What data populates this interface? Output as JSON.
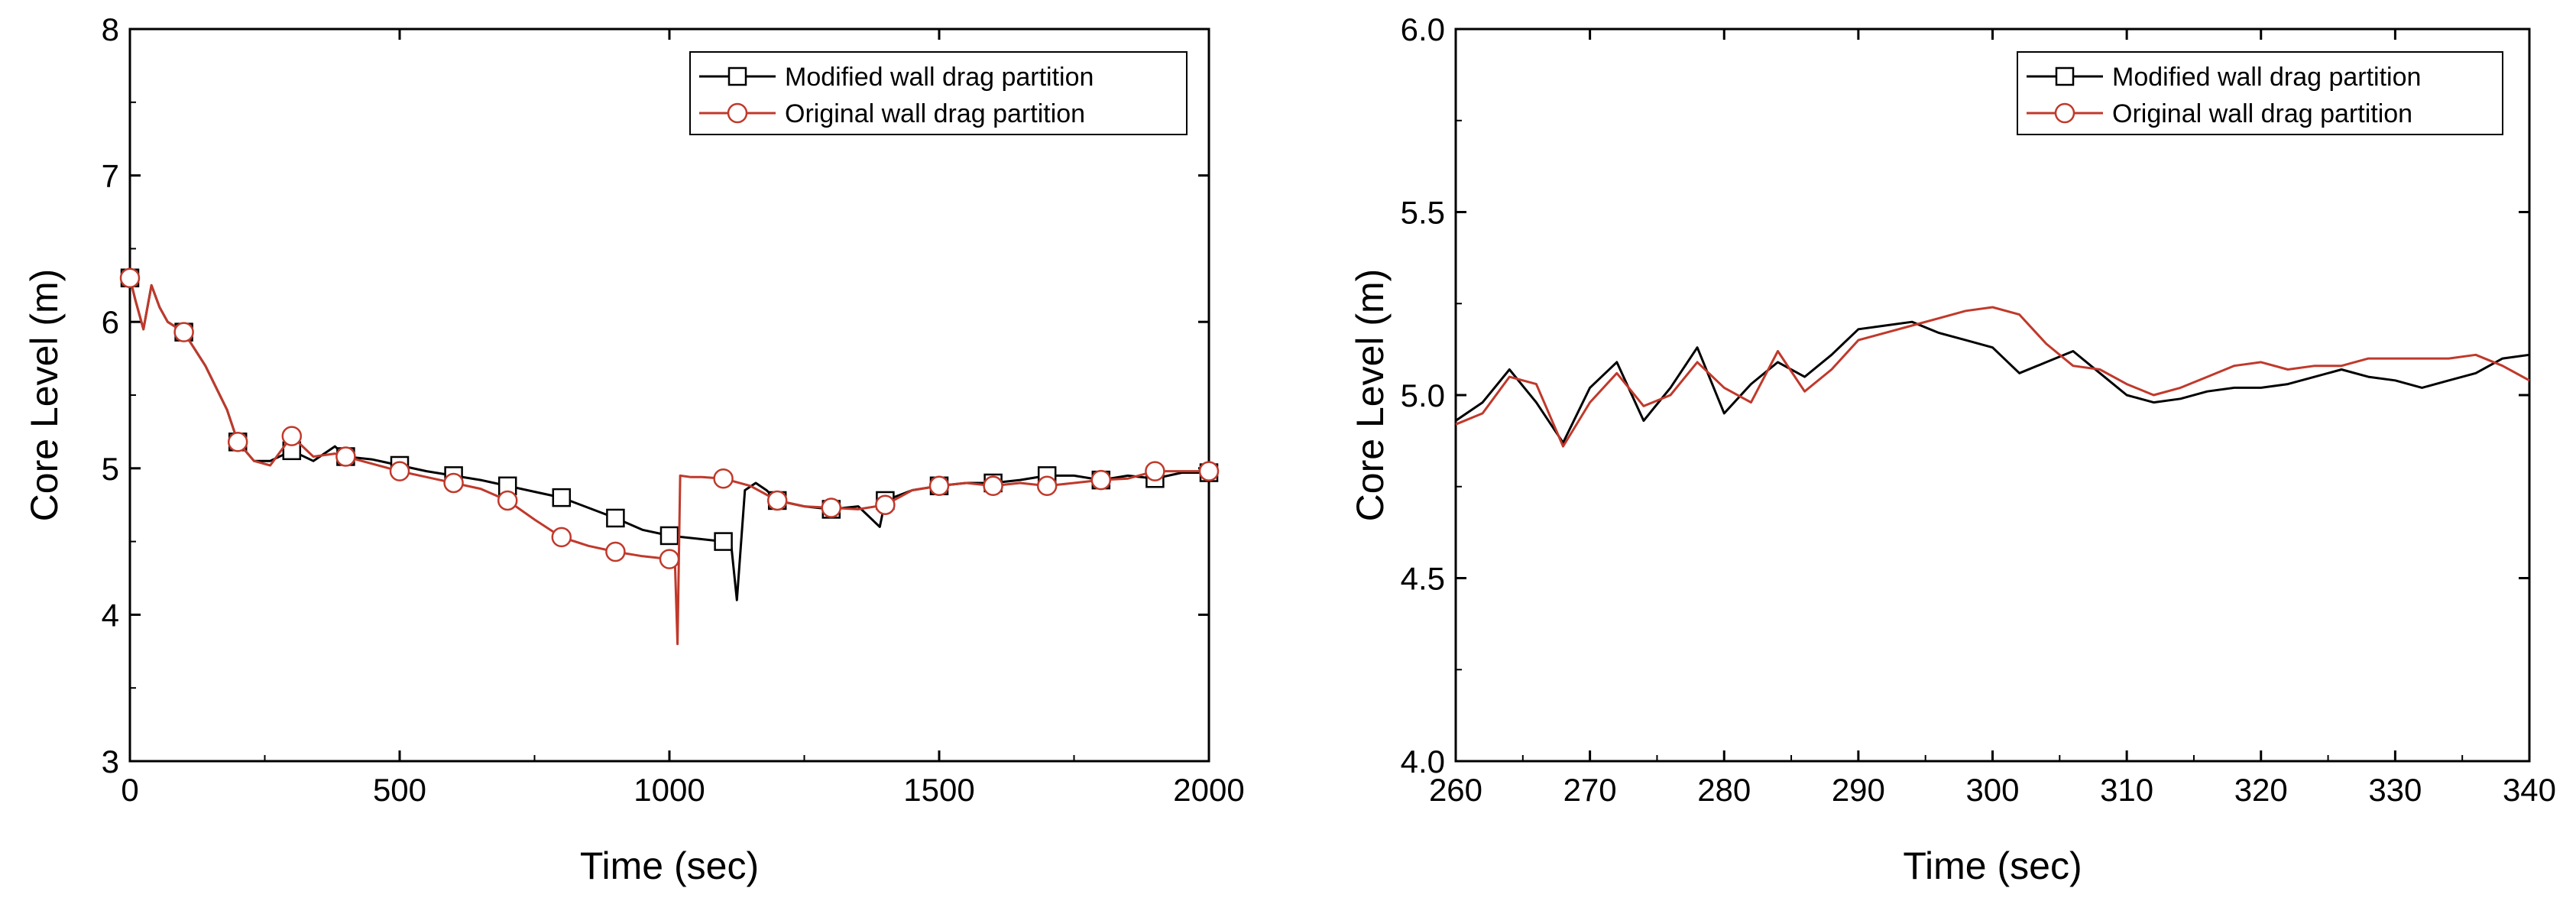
{
  "chart_data": [
    {
      "type": "line",
      "xlabel": "Time (sec)",
      "ylabel": "Core Level (m)",
      "xlim": [
        0,
        2000
      ],
      "ylim": [
        3,
        8
      ],
      "xticks": [
        "0",
        "500",
        "1000",
        "1500",
        "2000"
      ],
      "yticks": [
        "3",
        "4",
        "5",
        "6",
        "7",
        "8"
      ],
      "legend_position": "top-right",
      "series": [
        {
          "name": "Modified wall drag partition",
          "color": "#000000",
          "marker": "square",
          "x": [
            0,
            10,
            25,
            40,
            55,
            70,
            100,
            140,
            180,
            200,
            230,
            260,
            300,
            340,
            380,
            400,
            450,
            500,
            550,
            600,
            650,
            700,
            750,
            800,
            850,
            900,
            950,
            1000,
            1050,
            1100,
            1115,
            1125,
            1140,
            1160,
            1180,
            1200,
            1250,
            1300,
            1350,
            1390,
            1400,
            1450,
            1500,
            1550,
            1600,
            1650,
            1700,
            1750,
            1800,
            1850,
            1900,
            1950,
            2000
          ],
          "values": [
            6.3,
            6.15,
            5.95,
            6.25,
            6.1,
            6.0,
            5.93,
            5.7,
            5.4,
            5.18,
            5.05,
            5.05,
            5.12,
            5.05,
            5.15,
            5.08,
            5.06,
            5.02,
            4.98,
            4.95,
            4.92,
            4.88,
            4.84,
            4.8,
            4.73,
            4.66,
            4.58,
            4.54,
            4.52,
            4.5,
            4.46,
            4.1,
            4.85,
            4.9,
            4.85,
            4.78,
            4.74,
            4.72,
            4.74,
            4.6,
            4.78,
            4.85,
            4.88,
            4.9,
            4.9,
            4.92,
            4.95,
            4.95,
            4.92,
            4.95,
            4.93,
            4.97,
            4.97
          ],
          "marker_x": [
            0,
            100,
            200,
            300,
            400,
            500,
            600,
            700,
            800,
            900,
            1000,
            1100,
            1200,
            1300,
            1400,
            1500,
            1600,
            1700,
            1800,
            1900,
            2000
          ]
        },
        {
          "name": "Original wall drag partition",
          "color": "#c0392b",
          "marker": "circle",
          "x": [
            0,
            10,
            25,
            40,
            55,
            70,
            100,
            140,
            180,
            200,
            230,
            260,
            300,
            340,
            380,
            400,
            450,
            500,
            550,
            600,
            650,
            700,
            750,
            800,
            850,
            900,
            950,
            1000,
            1010,
            1015,
            1020,
            1040,
            1060,
            1100,
            1150,
            1200,
            1250,
            1300,
            1350,
            1400,
            1450,
            1500,
            1550,
            1600,
            1650,
            1700,
            1750,
            1800,
            1850,
            1900,
            1950,
            2000
          ],
          "values": [
            6.3,
            6.15,
            5.95,
            6.25,
            6.1,
            6.0,
            5.93,
            5.7,
            5.4,
            5.18,
            5.05,
            5.02,
            5.22,
            5.08,
            5.1,
            5.08,
            5.03,
            4.98,
            4.94,
            4.9,
            4.86,
            4.78,
            4.65,
            4.53,
            4.47,
            4.43,
            4.4,
            4.38,
            4.38,
            3.8,
            4.95,
            4.94,
            4.94,
            4.93,
            4.88,
            4.78,
            4.74,
            4.73,
            4.72,
            4.75,
            4.85,
            4.88,
            4.9,
            4.88,
            4.9,
            4.88,
            4.9,
            4.92,
            4.93,
            4.98,
            4.98,
            4.98
          ],
          "marker_x": [
            0,
            100,
            200,
            300,
            400,
            500,
            600,
            700,
            800,
            900,
            1000,
            1100,
            1200,
            1300,
            1400,
            1500,
            1600,
            1700,
            1800,
            1900,
            2000
          ]
        }
      ]
    },
    {
      "type": "line",
      "xlabel": "Time (sec)",
      "ylabel": "Core Level (m)",
      "xlim": [
        260,
        340
      ],
      "ylim": [
        4.0,
        6.0
      ],
      "xticks": [
        "260",
        "270",
        "280",
        "290",
        "300",
        "310",
        "320",
        "330",
        "340"
      ],
      "yticks": [
        "4.0",
        "4.5",
        "5.0",
        "5.5",
        "6.0"
      ],
      "legend_position": "top-right",
      "series": [
        {
          "name": "Modified wall drag partition",
          "color": "#000000",
          "marker": "square",
          "x": [
            260,
            262,
            264,
            266,
            268,
            270,
            272,
            274,
            276,
            278,
            280,
            282,
            284,
            286,
            288,
            290,
            292,
            294,
            296,
            298,
            300,
            302,
            304,
            306,
            308,
            310,
            312,
            314,
            316,
            318,
            320,
            322,
            324,
            326,
            328,
            330,
            332,
            334,
            336,
            338,
            340
          ],
          "values": [
            4.93,
            4.98,
            5.07,
            4.98,
            4.87,
            5.02,
            5.09,
            4.93,
            5.02,
            5.13,
            4.95,
            5.03,
            5.09,
            5.05,
            5.11,
            5.18,
            5.19,
            5.2,
            5.17,
            5.15,
            5.13,
            5.06,
            5.09,
            5.12,
            5.06,
            5.0,
            4.98,
            4.99,
            5.01,
            5.02,
            5.02,
            5.03,
            5.05,
            5.07,
            5.05,
            5.04,
            5.02,
            5.04,
            5.06,
            5.1,
            5.11
          ],
          "marker_x": []
        },
        {
          "name": "Original wall drag partition",
          "color": "#c0392b",
          "marker": "circle",
          "x": [
            260,
            262,
            264,
            266,
            268,
            270,
            272,
            274,
            276,
            278,
            280,
            282,
            284,
            286,
            288,
            290,
            292,
            294,
            296,
            298,
            300,
            302,
            304,
            306,
            308,
            310,
            312,
            314,
            316,
            318,
            320,
            322,
            324,
            326,
            328,
            330,
            332,
            334,
            336,
            338,
            340
          ],
          "values": [
            4.92,
            4.95,
            5.05,
            5.03,
            4.86,
            4.98,
            5.06,
            4.97,
            5.0,
            5.09,
            5.02,
            4.98,
            5.12,
            5.01,
            5.07,
            5.15,
            5.17,
            5.19,
            5.21,
            5.23,
            5.24,
            5.22,
            5.14,
            5.08,
            5.07,
            5.03,
            5.0,
            5.02,
            5.05,
            5.08,
            5.09,
            5.07,
            5.08,
            5.08,
            5.1,
            5.1,
            5.1,
            5.1,
            5.11,
            5.08,
            5.04
          ],
          "marker_x": []
        }
      ]
    }
  ]
}
